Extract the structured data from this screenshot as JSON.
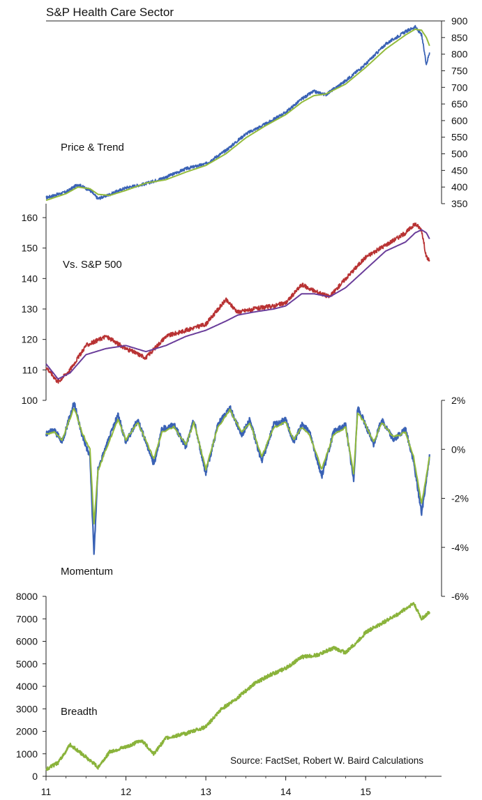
{
  "title": "S&P Health Care Sector",
  "source": "Source: FactSet, Robert W. Baird Calculations",
  "chart_data": [
    {
      "type": "line",
      "panel": "price",
      "label": "Price & Trend",
      "ylim": [
        350,
        900
      ],
      "yaxis_side": "right",
      "yticks": [
        350,
        400,
        450,
        500,
        550,
        600,
        650,
        700,
        750,
        800,
        850,
        900
      ],
      "colors": {
        "price": "#3a62b5",
        "trend": "#93bb3c"
      },
      "x": [
        2011.0,
        2011.25,
        2011.4,
        2011.55,
        2011.65,
        2011.8,
        2012.0,
        2012.25,
        2012.5,
        2012.75,
        2013.0,
        2013.25,
        2013.5,
        2013.75,
        2014.0,
        2014.2,
        2014.35,
        2014.5,
        2014.75,
        2015.0,
        2015.25,
        2015.5,
        2015.62,
        2015.7,
        2015.76,
        2015.8
      ],
      "series": [
        {
          "values": [
            368,
            385,
            408,
            390,
            365,
            378,
            398,
            410,
            430,
            455,
            470,
            510,
            560,
            590,
            625,
            665,
            688,
            678,
            720,
            770,
            830,
            868,
            882,
            858,
            770,
            805
          ]
        },
        {
          "values": [
            360,
            380,
            400,
            395,
            378,
            375,
            390,
            412,
            422,
            445,
            465,
            500,
            548,
            585,
            618,
            655,
            675,
            680,
            710,
            760,
            815,
            858,
            875,
            872,
            850,
            825
          ]
        }
      ]
    },
    {
      "type": "line",
      "panel": "relative",
      "label": "Vs. S&P 500",
      "ylim": [
        100,
        160
      ],
      "yaxis_side": "left",
      "yticks": [
        100,
        110,
        120,
        130,
        140,
        150,
        160
      ],
      "colors": {
        "ratio": "#b83233",
        "trend": "#6a3d9a"
      },
      "x": [
        2011.0,
        2011.15,
        2011.3,
        2011.5,
        2011.75,
        2012.0,
        2012.25,
        2012.5,
        2012.75,
        2013.0,
        2013.25,
        2013.4,
        2013.6,
        2013.85,
        2014.0,
        2014.2,
        2014.35,
        2014.55,
        2014.75,
        2015.0,
        2015.25,
        2015.5,
        2015.62,
        2015.7,
        2015.76,
        2015.8
      ],
      "series": [
        {
          "values": [
            111,
            106,
            110,
            118,
            121,
            117,
            114,
            121,
            123,
            125,
            133,
            129,
            130,
            131,
            132,
            138,
            136,
            134,
            140,
            147,
            151,
            155,
            158,
            156,
            147,
            146
          ]
        },
        {
          "values": [
            112,
            107,
            109,
            115,
            117,
            118,
            116,
            118,
            121,
            123,
            126,
            128,
            129,
            130,
            131,
            135,
            135,
            134,
            137,
            143,
            149,
            152,
            155,
            156,
            155,
            153
          ]
        }
      ]
    },
    {
      "type": "line",
      "panel": "momentum",
      "label": "Momentum",
      "ylim": [
        -6,
        2
      ],
      "yaxis_side": "right",
      "ytick_values": [
        2,
        0,
        -2,
        -4,
        -6
      ],
      "ytick_labels": [
        "2%",
        "0%",
        "-2%",
        "-4%",
        "-6%"
      ],
      "colors": {
        "momentum": "#3a62b5",
        "smooth": "#93bb3c"
      },
      "x": [
        2011.0,
        2011.1,
        2011.2,
        2011.35,
        2011.45,
        2011.55,
        2011.6,
        2011.65,
        2011.75,
        2011.9,
        2012.0,
        2012.15,
        2012.35,
        2012.45,
        2012.6,
        2012.75,
        2012.85,
        2013.0,
        2013.15,
        2013.3,
        2013.45,
        2013.55,
        2013.7,
        2013.85,
        2014.0,
        2014.1,
        2014.2,
        2014.3,
        2014.45,
        2014.6,
        2014.75,
        2014.85,
        2014.9,
        2015.0,
        2015.1,
        2015.2,
        2015.35,
        2015.5,
        2015.6,
        2015.7,
        2015.75,
        2015.8
      ],
      "series": [
        {
          "values": [
            0.6,
            0.8,
            0.3,
            1.9,
            0.6,
            -0.3,
            -4.3,
            -0.8,
            0.1,
            1.4,
            0.3,
            1.2,
            -0.6,
            0.8,
            1.0,
            0.1,
            1.2,
            -1.0,
            1.0,
            1.7,
            0.6,
            1.2,
            -0.5,
            1.0,
            1.2,
            0.3,
            1.0,
            0.7,
            -1.1,
            0.7,
            1.0,
            -1.3,
            1.7,
            1.0,
            0.2,
            1.2,
            0.4,
            0.8,
            -0.5,
            -2.6,
            -1.5,
            -0.2
          ]
        },
        {
          "values": [
            0.6,
            0.7,
            0.4,
            1.7,
            0.7,
            0.0,
            -3.0,
            -0.9,
            0.0,
            1.2,
            0.4,
            1.1,
            -0.4,
            0.7,
            0.9,
            0.2,
            1.1,
            -0.8,
            0.9,
            1.6,
            0.7,
            1.1,
            -0.3,
            0.9,
            1.1,
            0.4,
            0.9,
            0.6,
            -0.8,
            0.6,
            0.9,
            -1.0,
            1.5,
            1.0,
            0.3,
            1.1,
            0.5,
            0.7,
            -0.3,
            -2.2,
            -1.3,
            -0.3
          ]
        }
      ]
    },
    {
      "type": "line",
      "panel": "breadth",
      "label": "Breadth",
      "ylim": [
        0,
        8000
      ],
      "yaxis_side": "left",
      "yticks": [
        0,
        1000,
        2000,
        3000,
        4000,
        5000,
        6000,
        7000,
        8000
      ],
      "colors": {
        "breadth": "#8ab33b"
      },
      "x": [
        2011.0,
        2011.15,
        2011.3,
        2011.45,
        2011.55,
        2011.65,
        2011.8,
        2012.0,
        2012.2,
        2012.35,
        2012.5,
        2012.75,
        2013.0,
        2013.2,
        2013.4,
        2013.6,
        2013.8,
        2014.0,
        2014.2,
        2014.4,
        2014.6,
        2014.75,
        2014.9,
        2015.0,
        2015.2,
        2015.4,
        2015.6,
        2015.7,
        2015.8
      ],
      "series": [
        {
          "values": [
            300,
            600,
            1400,
            1000,
            700,
            400,
            1100,
            1300,
            1600,
            1000,
            1700,
            1900,
            2200,
            3000,
            3500,
            4100,
            4500,
            4800,
            5300,
            5400,
            5700,
            5500,
            6000,
            6400,
            6800,
            7200,
            7700,
            7000,
            7300
          ]
        }
      ]
    }
  ],
  "xaxis": {
    "ticks": [
      2011,
      2012,
      2013,
      2014,
      2015
    ],
    "tick_labels": [
      "11",
      "12",
      "13",
      "14",
      "15"
    ],
    "range": [
      2011,
      2015.95
    ]
  }
}
